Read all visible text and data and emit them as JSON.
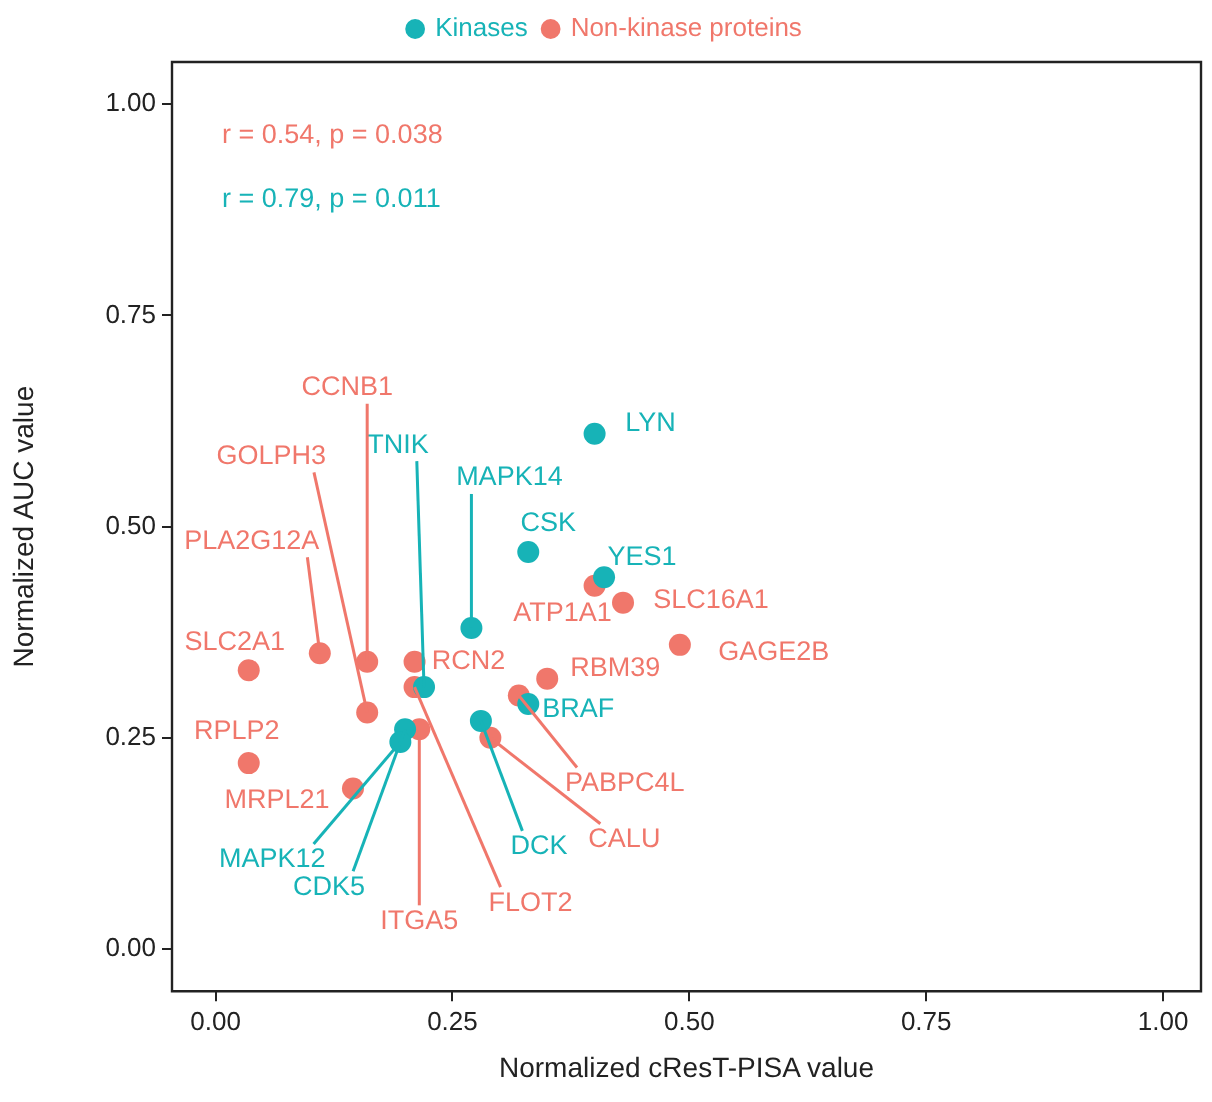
{
  "chart_data": {
    "type": "scatter",
    "xlabel": "Normalized cResT-PISA value",
    "ylabel": "Normalized AUC value",
    "xlim": [
      -0.046,
      1.04
    ],
    "ylim": [
      -0.05,
      1.05
    ],
    "xticks": [
      {
        "value": 0,
        "label": "0.00"
      },
      {
        "value": 0.25,
        "label": "0.25"
      },
      {
        "value": 0.5,
        "label": "0.50"
      },
      {
        "value": 0.75,
        "label": "0.75"
      },
      {
        "value": 1,
        "label": "1.00"
      }
    ],
    "yticks": [
      {
        "value": 0,
        "label": "0.00"
      },
      {
        "value": 0.25,
        "label": "0.25"
      },
      {
        "value": 0.5,
        "label": "0.50"
      },
      {
        "value": 0.75,
        "label": "0.75"
      },
      {
        "value": 1,
        "label": "1.00"
      }
    ],
    "grid": false,
    "legend": "top",
    "marker": "circle",
    "series": [
      {
        "name": "Kinases",
        "color": "#17b3b7",
        "x": [
          0.4,
          0.33,
          0.41,
          0.27,
          0.22,
          0.33,
          0.28,
          0.2,
          0.195
        ],
        "values": [
          0.61,
          0.47,
          0.44,
          0.38,
          0.31,
          0.29,
          0.27,
          0.26,
          0.245
        ]
      },
      {
        "name": "Non-kinase proteins",
        "color": "#f0776b",
        "x": [
          0.4,
          0.43,
          0.49,
          0.35,
          0.32,
          0.29,
          0.21,
          0.21,
          0.215,
          0.16,
          0.16,
          0.11,
          0.035,
          0.035,
          0.145
        ],
        "values": [
          0.43,
          0.41,
          0.36,
          0.32,
          0.3,
          0.25,
          0.34,
          0.31,
          0.26,
          0.34,
          0.28,
          0.35,
          0.33,
          0.22,
          0.19
        ]
      }
    ],
    "annotations": [
      "r = 0.54, p = 0.038",
      "r = 0.79, p = 0.011",
      {
        "text": "LYN",
        "x": 0.4,
        "y": 0.61
      },
      {
        "text": "CSK",
        "x": 0.33,
        "y": 0.47
      },
      {
        "text": "YES1",
        "x": 0.41,
        "y": 0.44
      },
      {
        "text": "MAPK14",
        "x": 0.27,
        "y": 0.38
      },
      {
        "text": "TNIK",
        "x": 0.22,
        "y": 0.31
      },
      {
        "text": "BRAF",
        "x": 0.33,
        "y": 0.29
      },
      {
        "text": "DCK",
        "x": 0.28,
        "y": 0.27
      },
      {
        "text": "CDK5",
        "x": 0.2,
        "y": 0.26
      },
      {
        "text": "MAPK12",
        "x": 0.195,
        "y": 0.245
      },
      {
        "text": "ATP1A1",
        "x": 0.4,
        "y": 0.43
      },
      {
        "text": "SLC16A1",
        "x": 0.43,
        "y": 0.41
      },
      {
        "text": "GAGE2B",
        "x": 0.49,
        "y": 0.36
      },
      {
        "text": "RBM39",
        "x": 0.35,
        "y": 0.32
      },
      {
        "text": "PABPC4L",
        "x": 0.32,
        "y": 0.3
      },
      {
        "text": "CALU",
        "x": 0.29,
        "y": 0.25
      },
      {
        "text": "RCN2",
        "x": 0.21,
        "y": 0.34
      },
      {
        "text": "FLOT2",
        "x": 0.21,
        "y": 0.31
      },
      {
        "text": "ITGA5",
        "x": 0.215,
        "y": 0.26
      },
      {
        "text": "CCNB1",
        "x": 0.16,
        "y": 0.34
      },
      {
        "text": "GOLPH3",
        "x": 0.16,
        "y": 0.28
      },
      {
        "text": "PLA2G12A",
        "x": 0.11,
        "y": 0.35
      },
      {
        "text": "SLC2A1",
        "x": 0.035,
        "y": 0.33
      },
      {
        "text": "RPLP2",
        "x": 0.035,
        "y": 0.22
      },
      {
        "text": "MRPL21",
        "x": 0.145,
        "y": 0.19
      }
    ]
  }
}
